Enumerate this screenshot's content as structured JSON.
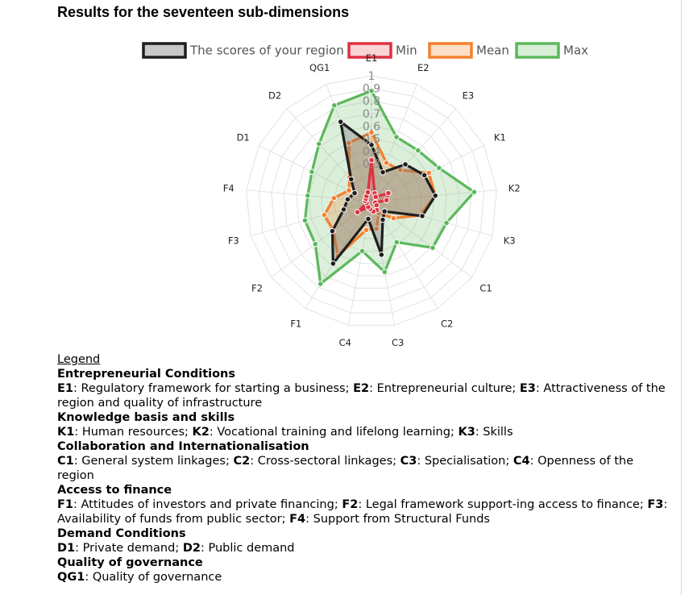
{
  "page": {
    "title": "Results for the seventeen sub-dimensions"
  },
  "chart_data": {
    "type": "radar",
    "axes": [
      "E1",
      "E2",
      "E3",
      "K1",
      "K2",
      "K3",
      "C1",
      "C2",
      "C3",
      "C4",
      "F1",
      "F2",
      "F3",
      "F4",
      "D1",
      "D2",
      "QG1"
    ],
    "radial_ticks": [
      "0.3",
      "0.4",
      "0.5",
      "0.6",
      "0.7",
      "0.8",
      "0.9",
      "1"
    ],
    "range": [
      0,
      1
    ],
    "legend_position": "top",
    "series": [
      {
        "name": "Max",
        "color": "#5cb85c",
        "fill": "rgba(92,184,92,0.22)",
        "values": [
          0.88,
          0.55,
          0.55,
          0.6,
          0.82,
          0.62,
          0.61,
          0.38,
          0.57,
          0.4,
          0.77,
          0.56,
          0.55,
          0.51,
          0.53,
          0.62,
          0.82
        ]
      },
      {
        "name": "Mean",
        "color": "#f4802f",
        "fill": "rgba(244,128,47,0.25)",
        "values": [
          0.55,
          0.33,
          0.34,
          0.51,
          0.51,
          0.4,
          0.22,
          0.11,
          0.22,
          0.23,
          0.51,
          0.38,
          0.39,
          0.3,
          0.2,
          0.26,
          0.5
        ]
      },
      {
        "name": "The scores of your region",
        "color": "#1e1e1e",
        "fill": "rgba(110,110,110,0.33)",
        "values": [
          0.45,
          0.25,
          0.4,
          0.47,
          0.51,
          0.42,
          0.13,
          0.17,
          0.43,
          0.14,
          0.58,
          0.39,
          0.23,
          0.19,
          0.15,
          0.24,
          0.68
        ]
      },
      {
        "name": "Min",
        "color": "#e03040",
        "fill": "rgba(224,48,64,0.20)",
        "values": [
          0.33,
          0.07,
          0.05,
          0.15,
          0.12,
          0.03,
          0.05,
          0.08,
          0.08,
          0.06,
          0.05,
          0.14,
          0.04,
          0.05,
          0.05,
          0.06,
          0.08
        ]
      }
    ],
    "legend": [
      {
        "name": "The scores of your region",
        "color": "#1e1e1e",
        "fill": "#c8c8c8"
      },
      {
        "name": "Min",
        "color": "#e03040",
        "fill": "#f9d3d6"
      },
      {
        "name": "Mean",
        "color": "#f4802f",
        "fill": "#fde0c8"
      },
      {
        "name": "Max",
        "color": "#5cb85c",
        "fill": "#d9efd7"
      }
    ]
  },
  "legend_section": {
    "heading": "Legend",
    "groups": [
      {
        "title": "Entrepreneurial Conditions",
        "items": [
          {
            "code": "E1",
            "text": ": Regulatory framework for starting a business; "
          },
          {
            "code": "E2",
            "text": ": Entrepreneurial culture; "
          },
          {
            "code": "E3",
            "text": ": Attractiveness of the region and quality of infrastructure"
          }
        ]
      },
      {
        "title": "Knowledge basis and skills",
        "items": [
          {
            "code": "K1",
            "text": ": Human resources; "
          },
          {
            "code": "K2",
            "text": ": Vocational training and lifelong learning; "
          },
          {
            "code": "K3",
            "text": ": Skills"
          }
        ]
      },
      {
        "title": "Collaboration and Internationalisation",
        "items": [
          {
            "code": "C1",
            "text": ": General system linkages; "
          },
          {
            "code": "C2",
            "text": ": Cross-sectoral linkages; "
          },
          {
            "code": "C3",
            "text": ": Specialisation; "
          },
          {
            "code": "C4",
            "text": ": Openness of the region"
          }
        ]
      },
      {
        "title": "Access to finance",
        "items": [
          {
            "code": "F1",
            "text": ": Attitudes of investors and private financing; "
          },
          {
            "code": "F2",
            "text": ": Legal framework support-ing access to finance; "
          },
          {
            "code": "F3",
            "text": ": Availability of funds from public sector; "
          },
          {
            "code": "F4",
            "text": ": Support from Structural Funds"
          }
        ]
      },
      {
        "title": "Demand Conditions",
        "items": [
          {
            "code": "D1",
            "text": ": Private demand; "
          },
          {
            "code": "D2",
            "text": ": Public demand"
          }
        ]
      },
      {
        "title": "Quality of governance",
        "items": [
          {
            "code": "QG1",
            "text": ": Quality of governance"
          }
        ]
      }
    ]
  }
}
